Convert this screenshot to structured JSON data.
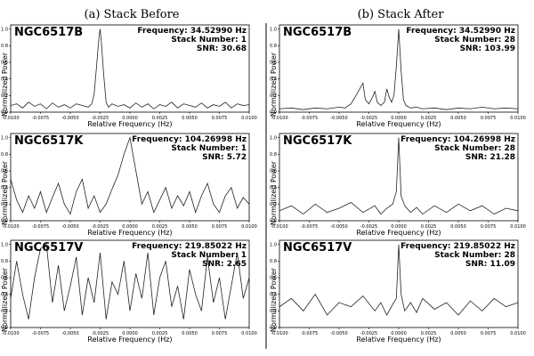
{
  "figure": {
    "column_titles": [
      "(a) Stack Before",
      "(b) Stack After"
    ]
  },
  "chart_data": [
    {
      "type": "line",
      "column": 0,
      "row": 0,
      "name": "NGC6517B",
      "frequency_text": "Frequency: 34.52990 Hz",
      "stack_text": "Stack Number: 1",
      "snr_text": "SNR: 30.68",
      "xlabel": "Relative Frequency (Hz)",
      "ylabel": "Normalized Power",
      "xlim": [
        -0.01,
        0.01
      ],
      "ylim": [
        0,
        1.05
      ],
      "xticks": [
        "-0.0100",
        "-0.0075",
        "-0.0050",
        "-0.0025",
        "0.0000",
        "0.0025",
        "0.0050",
        "0.0075",
        "0.0100"
      ],
      "yticks": [
        "0.0",
        "0.2",
        "0.4",
        "0.6",
        "0.8",
        "1.0"
      ],
      "series": [
        {
          "x": [
            -0.01,
            -0.0095,
            -0.009,
            -0.0085,
            -0.008,
            -0.0075,
            -0.007,
            -0.0065,
            -0.006,
            -0.0055,
            -0.005,
            -0.0045,
            -0.004,
            -0.0035,
            -0.0032,
            -0.003,
            -0.0028,
            -0.0026,
            -0.0025,
            -0.0024,
            -0.0022,
            -0.002,
            -0.0018,
            -0.0015,
            -0.001,
            -0.0005,
            0.0,
            0.0005,
            0.001,
            0.0015,
            0.002,
            0.0025,
            0.003,
            0.0035,
            0.004,
            0.0045,
            0.005,
            0.0055,
            0.006,
            0.0065,
            0.007,
            0.0075,
            0.008,
            0.0085,
            0.009,
            0.0095,
            0.01
          ],
          "y": [
            0.08,
            0.1,
            0.05,
            0.12,
            0.07,
            0.1,
            0.04,
            0.11,
            0.06,
            0.09,
            0.05,
            0.1,
            0.08,
            0.06,
            0.1,
            0.22,
            0.55,
            0.9,
            1.0,
            0.85,
            0.45,
            0.12,
            0.06,
            0.1,
            0.07,
            0.09,
            0.05,
            0.11,
            0.06,
            0.1,
            0.04,
            0.09,
            0.07,
            0.12,
            0.05,
            0.1,
            0.08,
            0.06,
            0.11,
            0.05,
            0.09,
            0.07,
            0.12,
            0.05,
            0.1,
            0.08,
            0.09
          ]
        }
      ]
    },
    {
      "type": "line",
      "column": 1,
      "row": 0,
      "name": "NGC6517B",
      "frequency_text": "Frequency: 34.52990 Hz",
      "stack_text": "Stack Number: 28",
      "snr_text": "SNR: 103.99",
      "xlabel": "Relative Frequency (Hz)",
      "ylabel": "Normalized Power",
      "xlim": [
        -0.01,
        0.01
      ],
      "ylim": [
        0,
        1.05
      ],
      "xticks": [
        "-0.0100",
        "-0.0075",
        "-0.0050",
        "-0.0025",
        "0.0000",
        "0.0025",
        "0.0050",
        "0.0075",
        "0.0100"
      ],
      "yticks": [
        "0.0",
        "0.2",
        "0.4",
        "0.6",
        "0.8",
        "1.0"
      ],
      "series": [
        {
          "x": [
            -0.01,
            -0.009,
            -0.008,
            -0.007,
            -0.006,
            -0.005,
            -0.0045,
            -0.004,
            -0.0035,
            -0.003,
            -0.0028,
            -0.0025,
            -0.0022,
            -0.002,
            -0.0018,
            -0.0015,
            -0.0012,
            -0.001,
            -0.0008,
            -0.0006,
            -0.0004,
            -0.0002,
            0.0,
            0.0002,
            0.0004,
            0.0006,
            0.001,
            0.0015,
            0.002,
            0.003,
            0.004,
            0.005,
            0.006,
            0.007,
            0.008,
            0.009,
            0.01
          ],
          "y": [
            0.04,
            0.05,
            0.03,
            0.05,
            0.04,
            0.06,
            0.05,
            0.1,
            0.22,
            0.35,
            0.15,
            0.1,
            0.18,
            0.25,
            0.12,
            0.08,
            0.12,
            0.28,
            0.18,
            0.12,
            0.2,
            0.55,
            1.0,
            0.5,
            0.15,
            0.08,
            0.05,
            0.06,
            0.04,
            0.05,
            0.03,
            0.05,
            0.04,
            0.06,
            0.04,
            0.05,
            0.04
          ]
        }
      ]
    },
    {
      "type": "line",
      "column": 0,
      "row": 1,
      "name": "NGC6517K",
      "frequency_text": "Frequency: 104.26998 Hz",
      "stack_text": "Stack Number: 1",
      "snr_text": "SNR: 5.72",
      "xlabel": "Relative Frequency (Hz)",
      "ylabel": "Normalized Power",
      "xlim": [
        -0.01,
        0.01
      ],
      "ylim": [
        0,
        1.05
      ],
      "xticks": [
        "-0.0100",
        "-0.0075",
        "-0.0050",
        "-0.0025",
        "0.0000",
        "0.0025",
        "0.0050",
        "0.0075",
        "0.0100"
      ],
      "yticks": [
        "0.0",
        "0.2",
        "0.4",
        "0.6",
        "0.8",
        "1.0"
      ],
      "series": [
        {
          "x": [
            -0.01,
            -0.0095,
            -0.009,
            -0.0085,
            -0.008,
            -0.0075,
            -0.007,
            -0.0065,
            -0.006,
            -0.0055,
            -0.005,
            -0.0045,
            -0.004,
            -0.0035,
            -0.003,
            -0.0025,
            -0.002,
            -0.0015,
            -0.001,
            -0.0005,
            0.0,
            0.0005,
            0.001,
            0.0015,
            0.002,
            0.0025,
            0.003,
            0.0035,
            0.004,
            0.0045,
            0.005,
            0.0055,
            0.006,
            0.0065,
            0.007,
            0.0075,
            0.008,
            0.0085,
            0.009,
            0.0095,
            0.01
          ],
          "y": [
            0.5,
            0.25,
            0.1,
            0.3,
            0.15,
            0.35,
            0.1,
            0.28,
            0.45,
            0.2,
            0.08,
            0.35,
            0.5,
            0.15,
            0.3,
            0.1,
            0.2,
            0.38,
            0.55,
            0.8,
            1.0,
            0.6,
            0.2,
            0.35,
            0.1,
            0.25,
            0.4,
            0.15,
            0.3,
            0.18,
            0.35,
            0.1,
            0.3,
            0.45,
            0.2,
            0.1,
            0.3,
            0.4,
            0.15,
            0.28,
            0.2
          ]
        }
      ]
    },
    {
      "type": "line",
      "column": 1,
      "row": 1,
      "name": "NGC6517K",
      "frequency_text": "Frequency: 104.26998 Hz",
      "stack_text": "Stack Number: 28",
      "snr_text": "SNR: 21.28",
      "xlabel": "Relative Frequency (Hz)",
      "ylabel": "Normalized Power",
      "xlim": [
        -0.01,
        0.01
      ],
      "ylim": [
        0,
        1.05
      ],
      "xticks": [
        "-0.0100",
        "-0.0075",
        "-0.0050",
        "-0.0025",
        "0.0000",
        "0.0025",
        "0.0050",
        "0.0075",
        "0.0100"
      ],
      "yticks": [
        "0.0",
        "0.2",
        "0.4",
        "0.6",
        "0.8",
        "1.0"
      ],
      "series": [
        {
          "x": [
            -0.01,
            -0.009,
            -0.008,
            -0.007,
            -0.006,
            -0.005,
            -0.004,
            -0.003,
            -0.002,
            -0.0015,
            -0.001,
            -0.0005,
            -0.0002,
            0.0,
            0.0002,
            0.0005,
            0.001,
            0.0015,
            0.002,
            0.003,
            0.004,
            0.005,
            0.006,
            0.007,
            0.008,
            0.009,
            0.01
          ],
          "y": [
            0.12,
            0.18,
            0.08,
            0.2,
            0.1,
            0.15,
            0.22,
            0.1,
            0.18,
            0.08,
            0.15,
            0.2,
            0.35,
            1.0,
            0.3,
            0.18,
            0.1,
            0.16,
            0.08,
            0.18,
            0.1,
            0.2,
            0.12,
            0.18,
            0.08,
            0.15,
            0.12
          ]
        }
      ]
    },
    {
      "type": "line",
      "column": 0,
      "row": 2,
      "name": "NGC6517V",
      "frequency_text": "Frequency: 219.85022 Hz",
      "stack_text": "Stack Number: 1",
      "snr_text": "SNR: 2.65",
      "xlabel": "Relative Frequency (Hz)",
      "ylabel": "Normalized Power",
      "xlim": [
        -0.01,
        0.01
      ],
      "ylim": [
        0,
        1.05
      ],
      "xticks": [
        "-0.0100",
        "-0.0075",
        "-0.0050",
        "-0.0025",
        "0.0000",
        "0.0025",
        "0.0050",
        "0.0075",
        "0.0100"
      ],
      "yticks": [
        "0.0",
        "0.2",
        "0.4",
        "0.6",
        "0.8",
        "1.0"
      ],
      "series": [
        {
          "x": [
            -0.01,
            -0.0095,
            -0.009,
            -0.0085,
            -0.008,
            -0.0075,
            -0.007,
            -0.0065,
            -0.006,
            -0.0055,
            -0.005,
            -0.0045,
            -0.004,
            -0.0035,
            -0.003,
            -0.0025,
            -0.002,
            -0.0015,
            -0.001,
            -0.0005,
            0.0,
            0.0005,
            0.001,
            0.0015,
            0.002,
            0.0025,
            0.003,
            0.0035,
            0.004,
            0.0045,
            0.005,
            0.0055,
            0.006,
            0.0065,
            0.007,
            0.0075,
            0.008,
            0.0085,
            0.009,
            0.0095,
            0.01
          ],
          "y": [
            0.35,
            0.8,
            0.4,
            0.1,
            0.6,
            0.95,
            1.0,
            0.3,
            0.75,
            0.2,
            0.5,
            0.85,
            0.15,
            0.6,
            0.3,
            0.9,
            0.1,
            0.55,
            0.4,
            0.8,
            0.2,
            0.65,
            0.35,
            0.9,
            0.15,
            0.6,
            0.8,
            0.25,
            0.5,
            0.1,
            0.7,
            0.4,
            0.2,
            0.85,
            0.3,
            0.6,
            0.1,
            0.5,
            0.9,
            0.35,
            0.6
          ]
        }
      ]
    },
    {
      "type": "line",
      "column": 1,
      "row": 2,
      "name": "NGC6517V",
      "frequency_text": "Frequency: 219.85022 Hz",
      "stack_text": "Stack Number: 28",
      "snr_text": "SNR: 11.09",
      "xlabel": "Relative Frequency (Hz)",
      "ylabel": "Normalized Power",
      "xlim": [
        -0.01,
        0.01
      ],
      "ylim": [
        0,
        1.05
      ],
      "xticks": [
        "-0.0100",
        "-0.0075",
        "-0.0050",
        "-0.0025",
        "0.0000",
        "0.0025",
        "0.0050",
        "0.0075",
        "0.0100"
      ],
      "yticks": [
        "0.0",
        "0.2",
        "0.4",
        "0.6",
        "0.8",
        "1.0"
      ],
      "series": [
        {
          "x": [
            -0.01,
            -0.009,
            -0.008,
            -0.007,
            -0.006,
            -0.005,
            -0.004,
            -0.003,
            -0.002,
            -0.0015,
            -0.001,
            -0.0005,
            -0.0002,
            0.0,
            0.0002,
            0.0005,
            0.001,
            0.0015,
            0.002,
            0.003,
            0.004,
            0.005,
            0.006,
            0.007,
            0.008,
            0.009,
            0.01
          ],
          "y": [
            0.25,
            0.35,
            0.2,
            0.4,
            0.15,
            0.3,
            0.25,
            0.38,
            0.2,
            0.3,
            0.15,
            0.28,
            0.35,
            1.0,
            0.4,
            0.2,
            0.3,
            0.18,
            0.35,
            0.22,
            0.3,
            0.15,
            0.32,
            0.2,
            0.35,
            0.25,
            0.3
          ]
        }
      ]
    }
  ]
}
